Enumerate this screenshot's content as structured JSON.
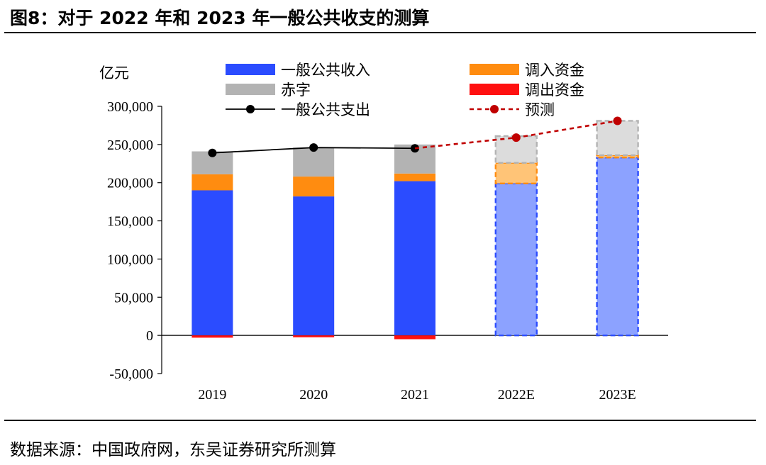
{
  "figure": {
    "title": "图8：对于 2022 年和 2023 年一般公共收支的测算",
    "source": "数据来源：中国政府网，东吴证券研究所测算"
  },
  "chart_data": {
    "type": "bar",
    "stacked": true,
    "title": "",
    "ylabel": "亿元",
    "xlabel": "",
    "ylim": [
      -50000,
      300000
    ],
    "yticks": [
      -50000,
      0,
      50000,
      100000,
      150000,
      200000,
      250000,
      300000
    ],
    "ytick_labels": [
      "-50,000",
      "0",
      "50,000",
      "100,000",
      "150,000",
      "200,000",
      "250,000",
      "300,000"
    ],
    "categories": [
      "2019",
      "2020",
      "2021",
      "2022E",
      "2023E"
    ],
    "forecast_categories": [
      "2022E",
      "2023E"
    ],
    "series": [
      {
        "name": "一般公共收入",
        "kind": "bar",
        "color": "#2b4cff",
        "forecast_color": "#8ca2ff",
        "values": [
          190000,
          182000,
          202000,
          199000,
          233000
        ]
      },
      {
        "name": "调入资金",
        "kind": "bar",
        "color": "#ff8c10",
        "forecast_color": "#ffc477",
        "values": [
          21000,
          26000,
          10000,
          27000,
          3000
        ]
      },
      {
        "name": "赤字",
        "kind": "bar",
        "color": "#b3b3b3",
        "forecast_color": "#dcdcdc",
        "values": [
          30000,
          38000,
          38000,
          35000,
          45000
        ]
      },
      {
        "name": "调出资金",
        "kind": "bar",
        "color": "#ff1010",
        "forecast_color": "#ff1010",
        "values": [
          -3000,
          -2500,
          -5000,
          0,
          0
        ]
      },
      {
        "name": "一般公共支出",
        "kind": "line",
        "color": "#000000",
        "x": [
          "2019",
          "2020",
          "2021"
        ],
        "values": [
          239000,
          246000,
          245000
        ]
      },
      {
        "name": "预测",
        "kind": "line",
        "style": "dashed",
        "color": "#c00000",
        "x": [
          "2021",
          "2022E",
          "2023E"
        ],
        "values": [
          245000,
          259000,
          281000
        ]
      }
    ],
    "legend": {
      "placement": "top",
      "left_column": [
        "一般公共收入",
        "赤字",
        "一般公共支出"
      ],
      "right_column": [
        "调入资金",
        "调出资金",
        "预测"
      ]
    },
    "grid": false
  }
}
